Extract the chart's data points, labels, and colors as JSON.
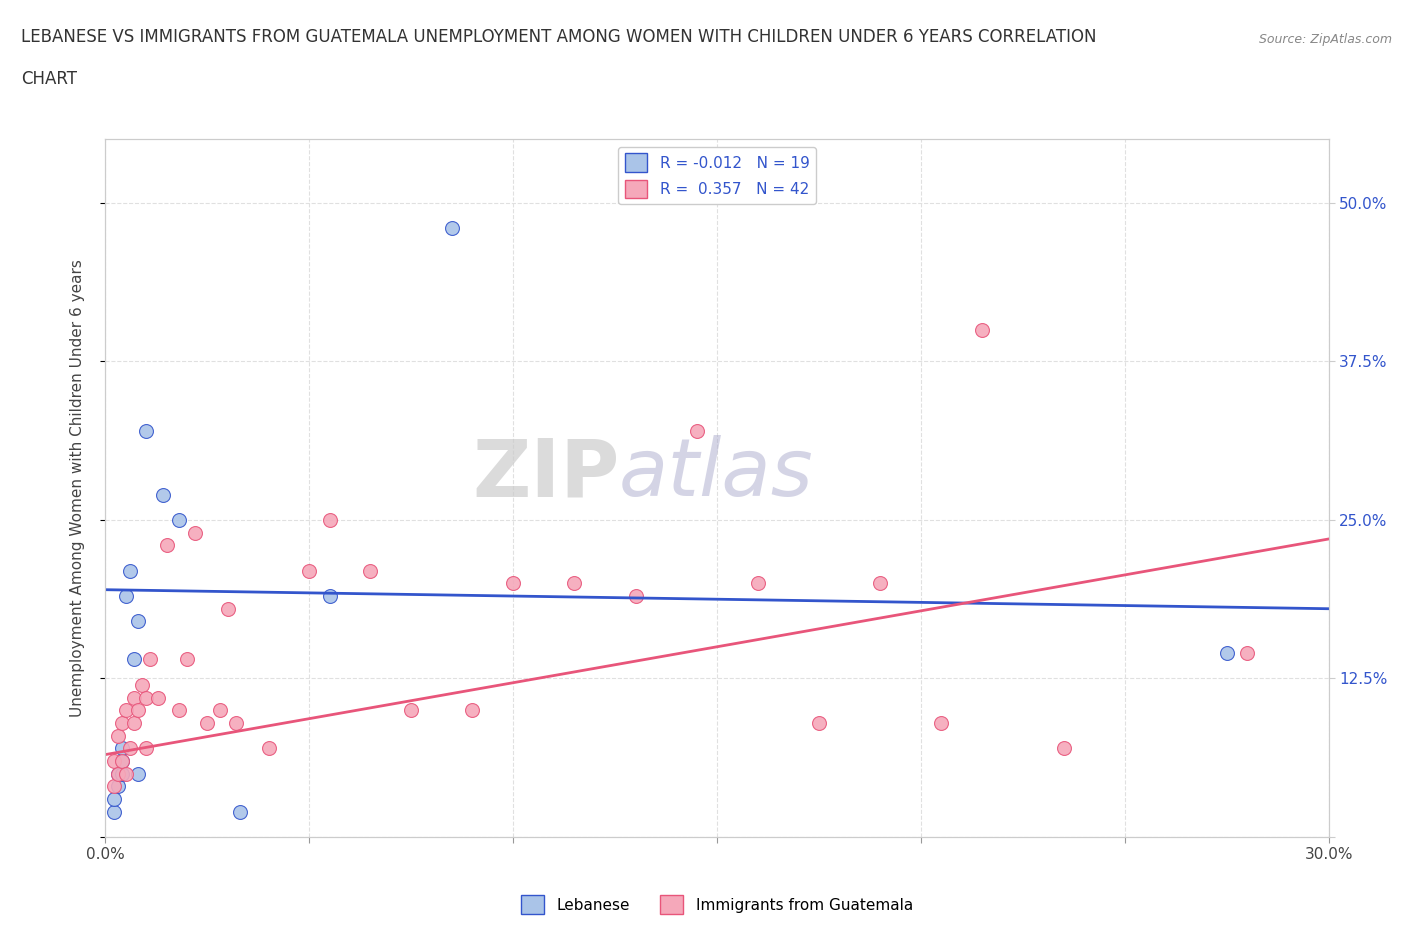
{
  "title_line1": "LEBANESE VS IMMIGRANTS FROM GUATEMALA UNEMPLOYMENT AMONG WOMEN WITH CHILDREN UNDER 6 YEARS CORRELATION",
  "title_line2": "CHART",
  "source_text": "Source: ZipAtlas.com",
  "ylabel": "Unemployment Among Women with Children Under 6 years",
  "xlim": [
    0.0,
    0.3
  ],
  "ylim": [
    0.0,
    0.55
  ],
  "ytick_labels": [
    "",
    "12.5%",
    "25.0%",
    "37.5%",
    "50.0%"
  ],
  "ytick_values": [
    0.0,
    0.125,
    0.25,
    0.375,
    0.5
  ],
  "xtick_labels": [
    "0.0%",
    "",
    "",
    "",
    "",
    "",
    "30.0%"
  ],
  "xtick_values": [
    0.0,
    0.05,
    0.1,
    0.15,
    0.2,
    0.25,
    0.3
  ],
  "watermark_zip": "ZIP",
  "watermark_atlas": "atlas",
  "legend_label1": "R = -0.012   N = 19",
  "legend_label2": "R =  0.357   N = 42",
  "label_lebanese": "Lebanese",
  "label_guatemala": "Immigrants from Guatemala",
  "color_lebanese": "#aac4e8",
  "color_guatemala": "#f5a8ba",
  "line_color_lebanese": "#3355cc",
  "line_color_guatemala": "#e8557a",
  "background_color": "#ffffff",
  "grid_color": "#e0e0e0",
  "lebanese_x": [
    0.002,
    0.002,
    0.003,
    0.003,
    0.004,
    0.004,
    0.004,
    0.005,
    0.006,
    0.007,
    0.008,
    0.008,
    0.01,
    0.014,
    0.018,
    0.033,
    0.055,
    0.085,
    0.275
  ],
  "lebanese_y": [
    0.02,
    0.03,
    0.04,
    0.05,
    0.05,
    0.06,
    0.07,
    0.19,
    0.21,
    0.14,
    0.05,
    0.17,
    0.32,
    0.27,
    0.25,
    0.02,
    0.19,
    0.48,
    0.145
  ],
  "guatemala_x": [
    0.002,
    0.002,
    0.003,
    0.003,
    0.004,
    0.004,
    0.005,
    0.005,
    0.006,
    0.007,
    0.007,
    0.008,
    0.009,
    0.01,
    0.01,
    0.011,
    0.013,
    0.015,
    0.018,
    0.02,
    0.022,
    0.025,
    0.028,
    0.03,
    0.032,
    0.04,
    0.05,
    0.055,
    0.065,
    0.075,
    0.09,
    0.1,
    0.115,
    0.13,
    0.145,
    0.16,
    0.175,
    0.19,
    0.205,
    0.215,
    0.235,
    0.28
  ],
  "guatemala_y": [
    0.04,
    0.06,
    0.05,
    0.08,
    0.06,
    0.09,
    0.05,
    0.1,
    0.07,
    0.09,
    0.11,
    0.1,
    0.12,
    0.07,
    0.11,
    0.14,
    0.11,
    0.23,
    0.1,
    0.14,
    0.24,
    0.09,
    0.1,
    0.18,
    0.09,
    0.07,
    0.21,
    0.25,
    0.21,
    0.1,
    0.1,
    0.2,
    0.2,
    0.19,
    0.32,
    0.2,
    0.09,
    0.2,
    0.09,
    0.4,
    0.07,
    0.145
  ],
  "leb_line_x": [
    0.0,
    0.3
  ],
  "leb_line_y": [
    0.195,
    0.18
  ],
  "gua_line_x": [
    0.0,
    0.3
  ],
  "gua_line_y": [
    0.065,
    0.235
  ]
}
